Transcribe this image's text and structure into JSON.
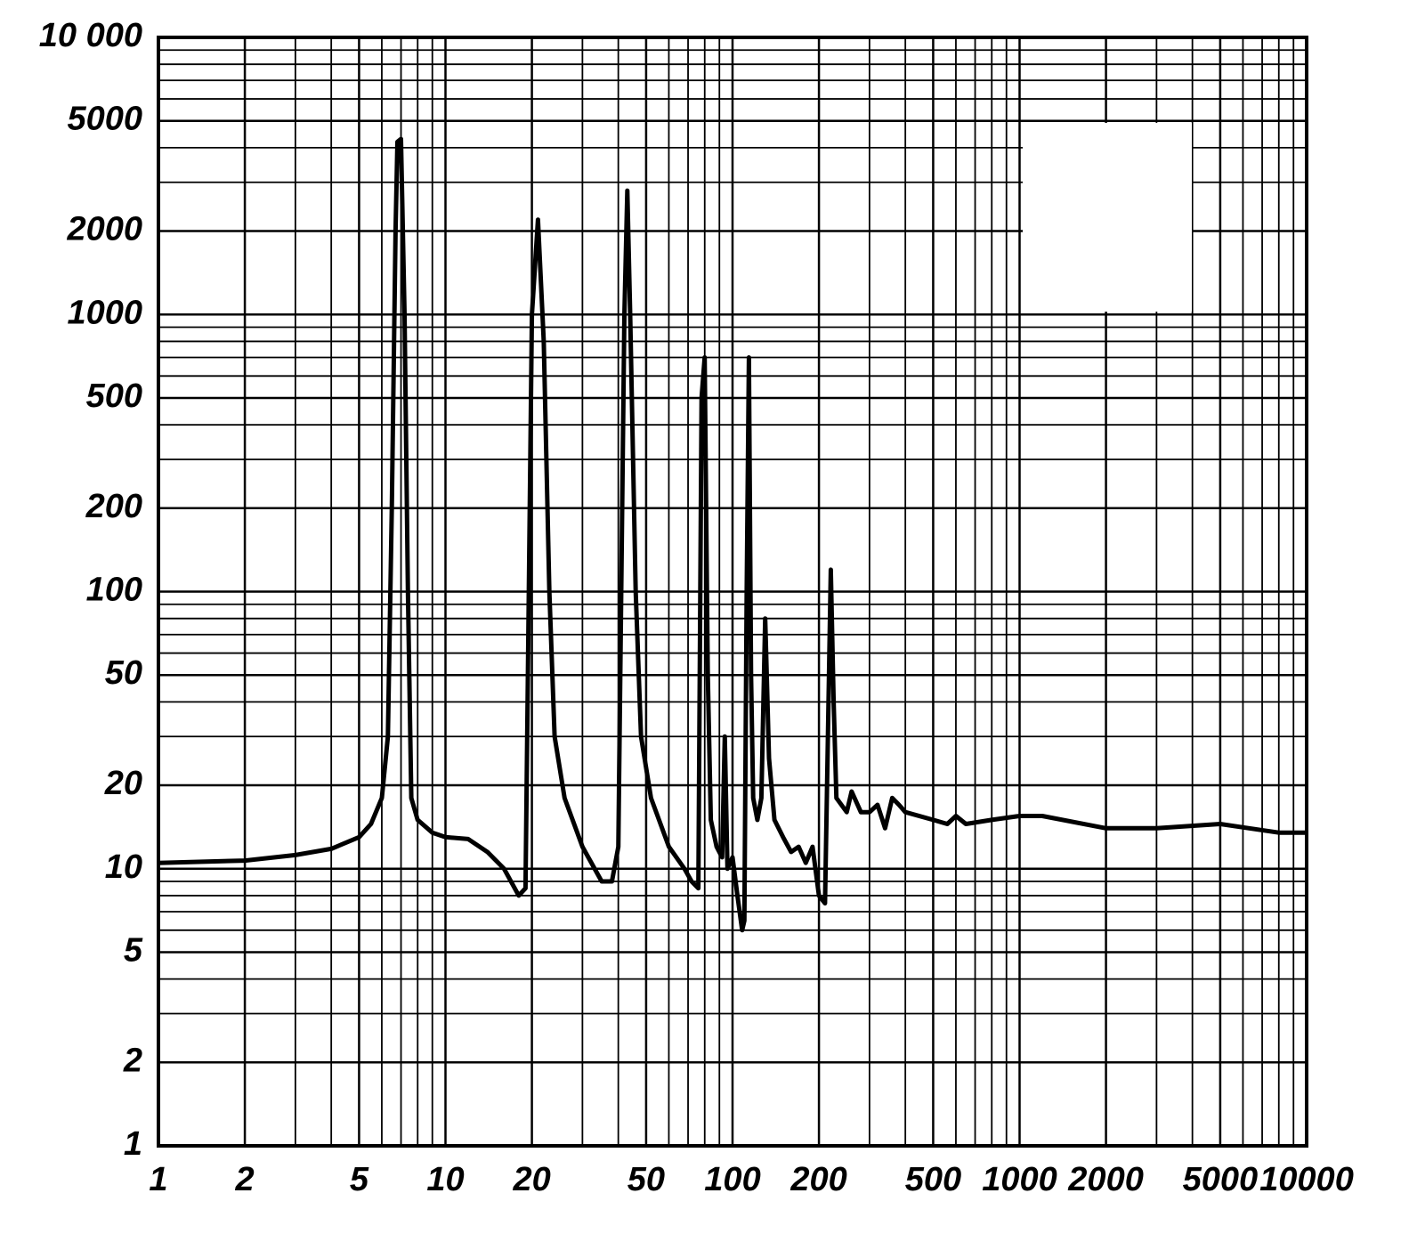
{
  "chart_data": {
    "type": "line",
    "xscale": "log",
    "yscale": "log",
    "grid": true,
    "color": "#000000",
    "xlim": [
      1,
      10000
    ],
    "ylim": [
      1,
      10000
    ],
    "xticks": [
      1,
      2,
      5,
      10,
      20,
      50,
      100,
      200,
      500,
      1000,
      2000,
      5000,
      10000
    ],
    "yticks": [
      1,
      2,
      5,
      10,
      20,
      50,
      100,
      200,
      500,
      1000,
      2000,
      5000,
      {
        "value": 10000,
        "label": "10 000"
      }
    ],
    "xminor": [
      3,
      4,
      6,
      7,
      8,
      9,
      30,
      40,
      60,
      70,
      80,
      90,
      300,
      400,
      600,
      700,
      800,
      900,
      3000,
      4000,
      6000,
      7000,
      8000,
      9000
    ],
    "yminor": [
      3,
      4,
      6,
      7,
      8,
      9,
      30,
      40,
      60,
      70,
      80,
      90,
      300,
      400,
      600,
      700,
      800,
      900,
      3000,
      4000,
      6000,
      7000,
      8000,
      9000
    ],
    "x": [
      1,
      2,
      3,
      4,
      5,
      5.5,
      6,
      6.3,
      6.5,
      6.7,
      6.8,
      7.0,
      7.2,
      7.4,
      7.6,
      8,
      9,
      10,
      12,
      14,
      16,
      18,
      19,
      20,
      21,
      22,
      23,
      24,
      26,
      30,
      35,
      38,
      40,
      42,
      43,
      44,
      46,
      48,
      52,
      60,
      68,
      72,
      76,
      78,
      80,
      82,
      84,
      88,
      92,
      94,
      96,
      100,
      104,
      108,
      110,
      112,
      114,
      116,
      118,
      122,
      126,
      130,
      134,
      140,
      150,
      160,
      170,
      180,
      190,
      200,
      210,
      220,
      225,
      230,
      250,
      260,
      280,
      300,
      320,
      340,
      360,
      380,
      400,
      500,
      560,
      600,
      650,
      800,
      1000,
      1200,
      2000,
      3000,
      5000,
      8000,
      10000
    ],
    "values": [
      10.5,
      10.7,
      11.2,
      11.8,
      13,
      14.5,
      18,
      30,
      200,
      2000,
      4200,
      4300,
      1000,
      100,
      18,
      15,
      13.5,
      13,
      12.8,
      11.5,
      10,
      8,
      8.5,
      1000,
      2200,
      800,
      100,
      30,
      18,
      12,
      9,
      9,
      12,
      1000,
      2800,
      1000,
      100,
      30,
      18,
      12,
      10,
      9,
      8.5,
      500,
      700,
      50,
      15,
      12,
      11,
      30,
      10,
      11,
      8,
      6,
      6.5,
      100,
      700,
      50,
      18,
      15,
      18,
      80,
      25,
      15,
      13,
      11.5,
      12,
      10.5,
      12,
      8,
      7.5,
      120,
      40,
      18,
      16,
      19,
      16,
      16,
      17,
      14,
      18,
      17,
      16,
      15,
      14.5,
      15.5,
      14.5,
      15,
      15.5,
      15.5,
      14,
      14,
      14.5,
      13.5,
      13.5
    ]
  }
}
